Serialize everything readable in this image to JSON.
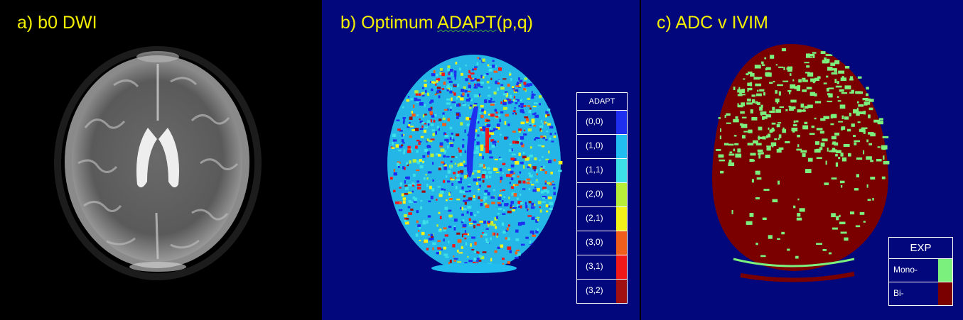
{
  "panels": {
    "a": {
      "title": "a)  b0 DWI"
    },
    "b": {
      "title_prefix": "b)  Optimum ",
      "title_word": "ADAPT",
      "title_suffix": "(p,q)"
    },
    "c": {
      "title": "c)  ADC v IVIM"
    }
  },
  "adapt_legend": {
    "title": "ADAPT",
    "items": [
      {
        "label": "(0,0)",
        "color": "#1f2ff0"
      },
      {
        "label": "(1,0)",
        "color": "#22bdf0"
      },
      {
        "label": "(1,1)",
        "color": "#3ee0e8"
      },
      {
        "label": "(2,0)",
        "color": "#b8ee3a"
      },
      {
        "label": "(2,1)",
        "color": "#f2f21a"
      },
      {
        "label": "(3,0)",
        "color": "#f05e1c"
      },
      {
        "label": "(3,1)",
        "color": "#f01818"
      },
      {
        "label": "(3,2)",
        "color": "#a01010"
      }
    ]
  },
  "exp_legend": {
    "title": "EXP",
    "items": [
      {
        "label": "Mono-",
        "color": "#7cf07c"
      },
      {
        "label": "Bi-",
        "color": "#7a0000"
      }
    ]
  },
  "colors": {
    "title_yellow": "#f4f000",
    "map_background": "#02087c",
    "brain_base_b": "#23b6e6",
    "brain_base_c": "#7a0000",
    "mono_green": "#7cf07c"
  }
}
